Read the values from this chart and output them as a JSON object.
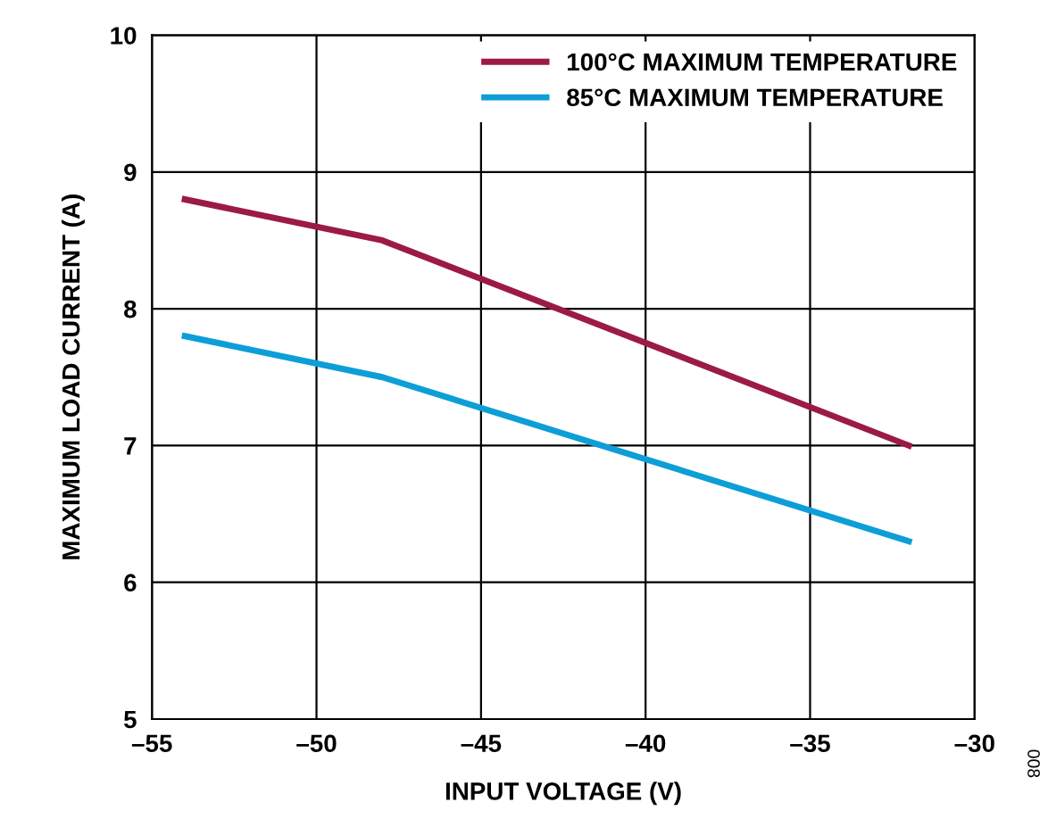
{
  "chart_data": {
    "type": "line",
    "xlabel": "INPUT VOLTAGE (V)",
    "ylabel": "MAXIMUM LOAD CURRENT (A)",
    "x": [
      -54,
      -48,
      -32
    ],
    "series": [
      {
        "name": "100°C MAXIMUM TEMPERATURE",
        "color": "#9b1b45",
        "values": [
          8.8,
          8.5,
          7.0
        ]
      },
      {
        "name": "85°C MAXIMUM TEMPERATURE",
        "color": "#0d9ed8",
        "values": [
          7.8,
          7.5,
          6.3
        ]
      }
    ],
    "xlim": [
      -55,
      -30
    ],
    "ylim": [
      5,
      10
    ],
    "xticks": [
      {
        "value": -55,
        "label": "–55"
      },
      {
        "value": -50,
        "label": "–50"
      },
      {
        "value": -45,
        "label": "–45"
      },
      {
        "value": -40,
        "label": "–40"
      },
      {
        "value": -35,
        "label": "–35"
      },
      {
        "value": -30,
        "label": "–30"
      }
    ],
    "yticks": [
      5,
      6,
      7,
      8,
      9,
      10
    ],
    "grid": true,
    "legend": "top right",
    "marker": "none",
    "line_style": "solid",
    "annotations": [
      "008"
    ]
  }
}
